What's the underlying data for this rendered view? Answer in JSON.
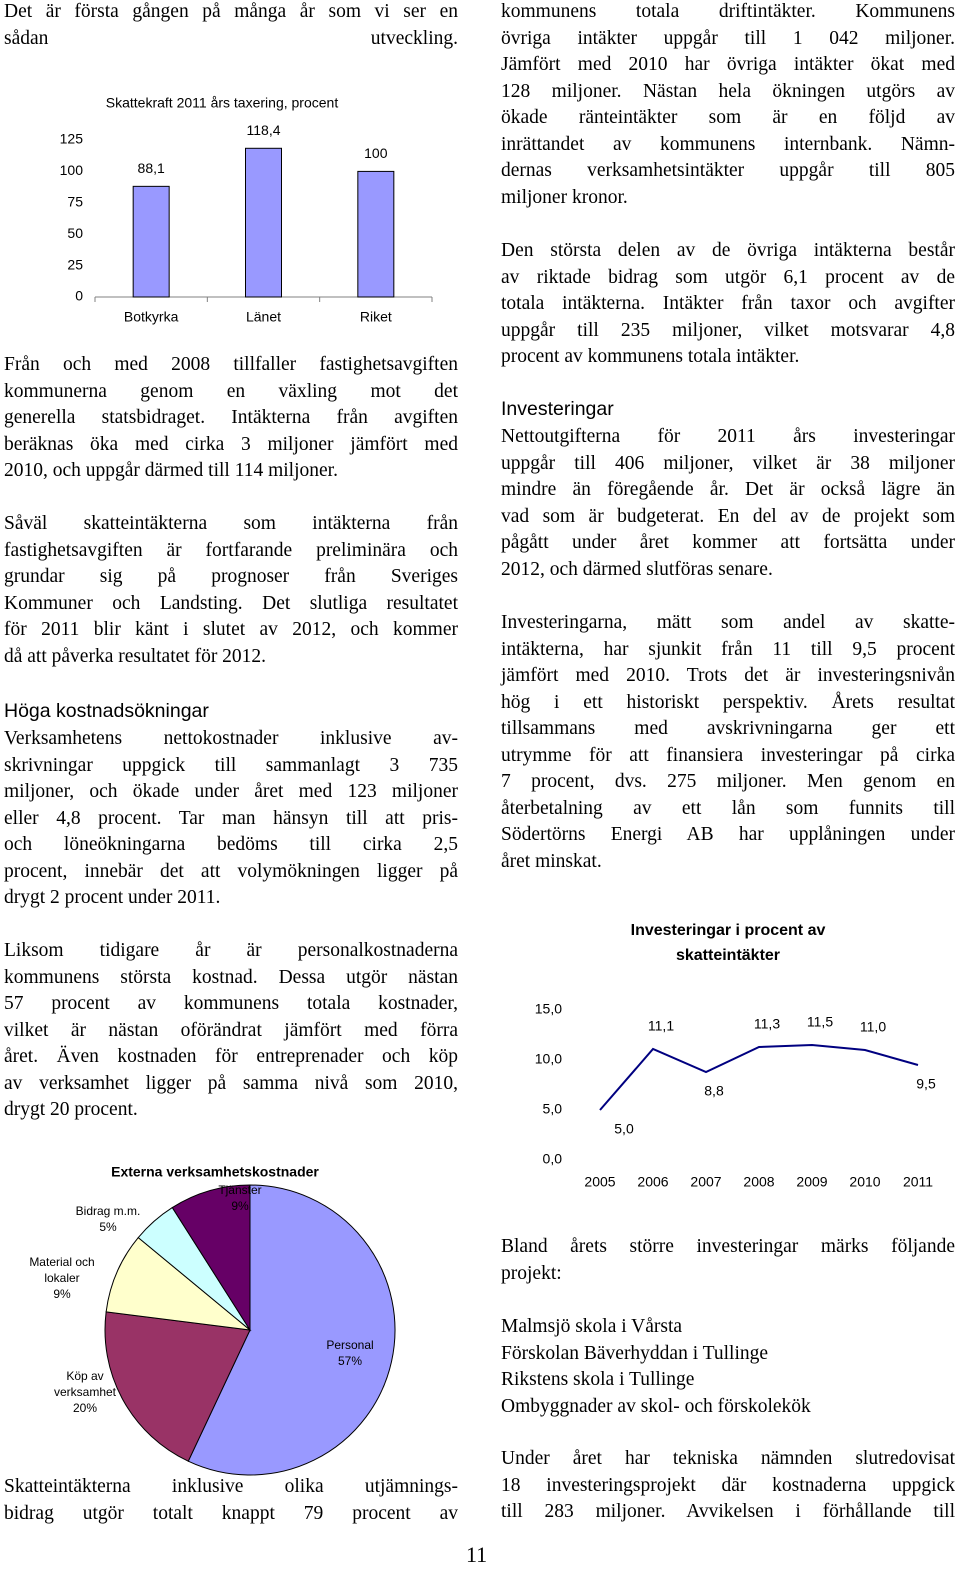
{
  "left_column": {
    "paragraphs": [
      [
        "Det är första gången på många år som vi ser en",
        "sådan utveckling."
      ],
      [
        "Från och med 2008 tillfaller fastighetsavgiften",
        "kommunerna genom en växling mot det",
        "generella statsbidraget. Intäkterna från avgiften",
        "beräknas öka med cirka 3 miljoner jämfört med",
        "2010, och uppgår därmed till 114 miljoner."
      ],
      [
        "Såväl skatteintäkterna som intäkterna från",
        "fastighetsavgiften är fortfarande preliminära och",
        "grundar sig på prognoser från Sveriges",
        "Kommuner och Landsting. Det slutliga resultatet",
        "för 2011 blir känt i slutet av 2012, och kommer",
        "då att påverka resultatet för 2012."
      ],
      [
        "Verksamhetens nettokostnader inklusive av-",
        "skrivningar uppgick till sammanlagt 3 735",
        "miljoner, och ökade under året med 123 miljoner",
        "eller 4,8 procent. Tar man hänsyn till att pris-",
        "och löneökningarna bedöms till cirka 2,5",
        "procent, innebär det att volymökningen ligger på",
        "drygt 2 procent under 2011."
      ],
      [
        "Liksom tidigare år är personalkostnaderna",
        "kommunens största kostnad. Dessa utgör nästan",
        "57 procent av kommunens totala kostnader,",
        "vilket är nästan oförändrat jämfört med förra",
        "året. Även kostnaden för entreprenader och köp",
        "av verksamhet ligger på samma nivå som 2010,",
        "drygt 20 procent."
      ],
      [
        "Skatteintäkterna inklusive olika utjämnings-",
        "bidrag utgör totalt knappt 79 procent av"
      ]
    ],
    "heading": "Höga kostnadsökningar"
  },
  "right_column": {
    "paragraphs": [
      [
        "kommunens totala driftintäkter. Kommunens",
        "övriga intäkter uppgår till 1 042 miljoner.",
        "Jämfört med 2010 har övriga intäkter ökat med",
        "128 miljoner. Nästan hela ökningen utgörs av",
        "ökade ränteintäkter som är en följd av",
        "inrättandet av kommunens internbank. Nämn-",
        "dernas verksamhetsintäkter uppgår till 805",
        "miljoner kronor."
      ],
      [
        "Den största delen av de övriga intäkterna består",
        "av riktade bidrag som utgör 6,1 procent av de",
        "totala intäkterna. Intäkter från taxor och avgifter",
        "uppgår till 235 miljoner, vilket motsvarar 4,8",
        "procent av kommunens totala intäkter."
      ],
      [
        "Nettoutgifterna för 2011 års investeringar",
        "uppgår till 406 miljoner, vilket är 38 miljoner",
        "mindre än föregående år. Det är också lägre än",
        "vad som är budgeterat. En del av de projekt som",
        "pågått under året kommer att fortsätta under",
        "2012, och därmed slutföras senare."
      ],
      [
        "Investeringarna, mätt som andel av skatte-",
        "intäkterna, har sjunkit från 11 till 9,5 procent",
        "jämfört med 2010. Trots det är investeringsnivån",
        "hög i ett historiskt perspektiv. Årets resultat",
        "tillsammans med avskrivningarna ger ett",
        "utrymme för att finansiera investeringar på cirka",
        "7 procent, dvs. 275 miljoner. Men genom en",
        "återbetalning av ett lån som funnits till",
        "Södertörns Energi AB har upplåningen under",
        "året minskat."
      ],
      [
        "Bland årets större investeringar märks följande",
        "projekt:"
      ],
      [
        "Malmsjö skola i Vårsta",
        "Förskolan Bäverhyddan i Tullinge",
        "Rikstens skola i Tullinge",
        "Ombyggnader av skol- och förskolekök"
      ],
      [
        "Under året har tekniska nämnden slutredovisat",
        "18 investeringsprojekt där kostnaderna uppgick",
        "till 283 miljoner. Avvikelsen i förhållande till"
      ]
    ],
    "heading": "Investeringar"
  },
  "page_number": "11",
  "chart_data": [
    {
      "type": "bar",
      "title": "Skattekraft 2011 års taxering, procent",
      "categories": [
        "Botkyrka",
        "Länet",
        "Riket"
      ],
      "values": [
        88.1,
        118.4,
        100
      ],
      "value_labels": [
        "88,1",
        "118,4",
        "100"
      ],
      "color": "#9999ff",
      "ylim": [
        0,
        125
      ],
      "yticks": [
        0,
        25,
        50,
        75,
        100,
        125
      ]
    },
    {
      "type": "pie",
      "title": "Externa verksamhetskostnader",
      "categories": [
        "Personal",
        "Köp av verksamhet",
        "Material och lokaler",
        "Bidrag m.m.",
        "Tjänster"
      ],
      "values": [
        57,
        20,
        9,
        5,
        9
      ],
      "value_labels": [
        "57%",
        "20%",
        "9%",
        "5%",
        "9%"
      ],
      "colors": [
        "#9999ff",
        "#993366",
        "#ffffcc",
        "#ccffff",
        "#660066"
      ]
    },
    {
      "type": "line",
      "title": "Investeringar i procent av skatteintäkter",
      "categories": [
        "2005",
        "2006",
        "2007",
        "2008",
        "2009",
        "2010",
        "2011"
      ],
      "values": [
        5.0,
        11.1,
        8.8,
        11.3,
        11.5,
        11.0,
        9.5
      ],
      "value_labels": [
        "5,0",
        "11,1",
        "8,8",
        "11,3",
        "11,5",
        "11,0",
        "9,5"
      ],
      "color": "#000080",
      "ylim": [
        0,
        15
      ],
      "yticks": [
        {
          "value": 0,
          "label": "0,0"
        },
        {
          "value": 5,
          "label": "5,0"
        },
        {
          "value": 10,
          "label": "10,0"
        },
        {
          "value": 15,
          "label": "15,0"
        }
      ]
    }
  ]
}
